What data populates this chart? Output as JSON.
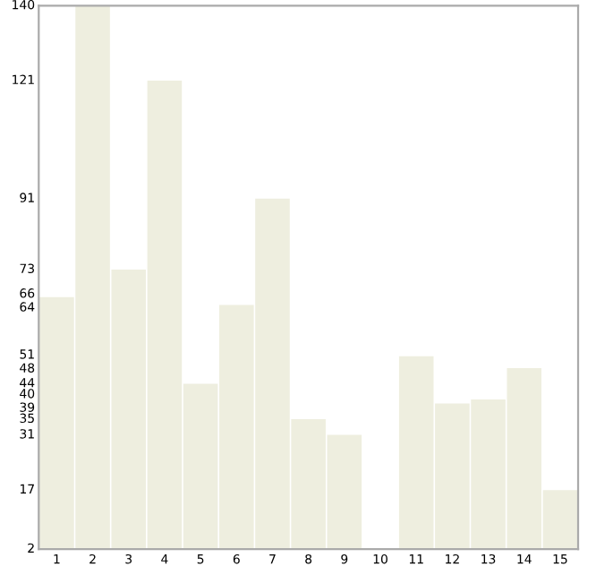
{
  "chart_data": {
    "type": "bar",
    "categories": [
      "1",
      "2",
      "3",
      "4",
      "5",
      "6",
      "7",
      "8",
      "9",
      "10",
      "11",
      "12",
      "13",
      "14",
      "15"
    ],
    "values": [
      66,
      140,
      73,
      121,
      44,
      64,
      91,
      35,
      31,
      2,
      51,
      39,
      40,
      48,
      17
    ],
    "color": "#eeeedf",
    "ylim": [
      2,
      140
    ],
    "yticks": [
      2,
      17,
      31,
      35,
      39,
      40,
      44,
      48,
      51,
      64,
      66,
      73,
      91,
      121,
      140
    ],
    "grid": false
  }
}
